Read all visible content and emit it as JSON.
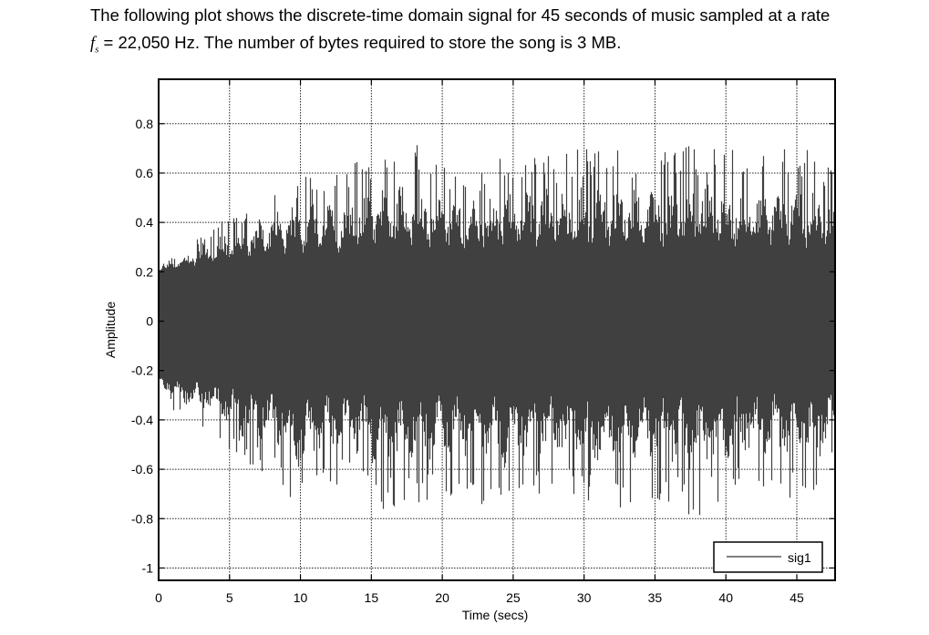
{
  "intro": {
    "line1": "The following plot shows the discrete-time domain signal for 45 seconds of music sampled at a rate",
    "fs_symbol": "f",
    "fs_subscript": "s",
    "line2_rest": " = 22,050 Hz. The number of bytes required to store the song is 3 MB."
  },
  "colors": {
    "signal": "#404040",
    "axes": "#000000",
    "grid": "#222222",
    "legend_line": "#808080"
  },
  "chart_data": {
    "type": "line",
    "title": "",
    "xlabel": "Time (secs)",
    "ylabel": "Amplitude",
    "xlim": [
      0,
      47.7
    ],
    "ylim": [
      -1.05,
      0.98
    ],
    "xticks": [
      0,
      5,
      10,
      15,
      20,
      25,
      30,
      35,
      40,
      45
    ],
    "xtick_labels": [
      "0",
      "5",
      "10",
      "15",
      "20",
      "25",
      "30",
      "35",
      "40",
      "45"
    ],
    "yticks": [
      0.8,
      0.6,
      0.4,
      0.2,
      0,
      -0.2,
      -0.4,
      -0.6,
      -0.8,
      -1
    ],
    "ytick_labels": [
      "0.8",
      "0.6",
      "0.4",
      "0.2",
      "0",
      "-0.2",
      "-0.4",
      "-0.6",
      "-0.8",
      "-1"
    ],
    "grid": true,
    "legend": {
      "entries": [
        "sig1"
      ],
      "position": "lower right"
    },
    "series": [
      {
        "name": "sig1",
        "description": "Dense audio waveform, 45+ s at fs = 22,050 Hz; dense core about ±0.2, envelope peaks about ±0.4–0.6, isolated spikes to about +0.72 / -0.8",
        "envelope_x": [
          0,
          2,
          4,
          6,
          8,
          10,
          12,
          14,
          16,
          18,
          20,
          22,
          24,
          26,
          28,
          30,
          32,
          34,
          36,
          38,
          40,
          42,
          44,
          46,
          47.7
        ],
        "envelope_upper": [
          0.22,
          0.3,
          0.4,
          0.46,
          0.55,
          0.6,
          0.6,
          0.65,
          0.7,
          0.72,
          0.65,
          0.62,
          0.66,
          0.7,
          0.68,
          0.7,
          0.72,
          0.68,
          0.7,
          0.72,
          0.7,
          0.68,
          0.72,
          0.7,
          0.6
        ],
        "envelope_lower": [
          -0.3,
          -0.42,
          -0.46,
          -0.6,
          -0.62,
          -0.78,
          -0.65,
          -0.7,
          -0.78,
          -0.75,
          -0.7,
          -0.72,
          -0.78,
          -0.7,
          -0.7,
          -0.72,
          -0.78,
          -0.72,
          -0.75,
          -0.8,
          -0.72,
          -0.68,
          -0.7,
          -0.78,
          -0.6
        ],
        "core_amplitude": 0.2
      }
    ]
  }
}
